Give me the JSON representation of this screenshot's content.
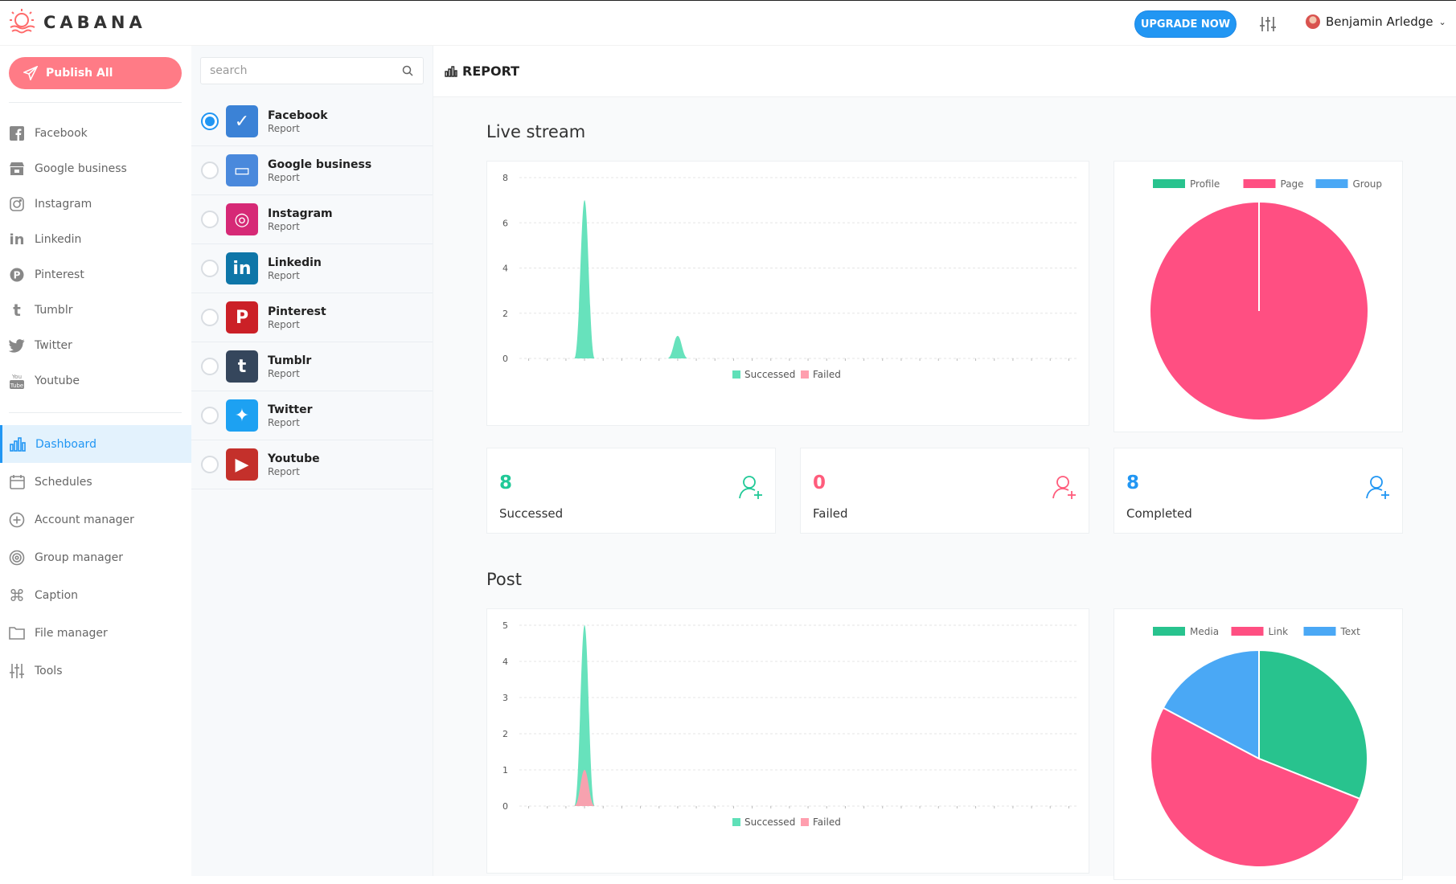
{
  "brand": {
    "name": "CABANA"
  },
  "header": {
    "upgrade_label": "UPGRADE NOW",
    "user_name": "Benjamin Arledge"
  },
  "sidebar": {
    "publish_label": "Publish All",
    "networks": [
      {
        "label": "Facebook",
        "icon": "facebook-icon"
      },
      {
        "label": "Google business",
        "icon": "store-icon"
      },
      {
        "label": "Instagram",
        "icon": "instagram-icon"
      },
      {
        "label": "Linkedin",
        "icon": "linkedin-icon"
      },
      {
        "label": "Pinterest",
        "icon": "pinterest-icon"
      },
      {
        "label": "Tumblr",
        "icon": "tumblr-icon"
      },
      {
        "label": "Twitter",
        "icon": "twitter-icon"
      },
      {
        "label": "Youtube",
        "icon": "youtube-icon"
      }
    ],
    "menu": [
      {
        "label": "Dashboard",
        "icon": "bar-chart-icon",
        "active": true
      },
      {
        "label": "Schedules",
        "icon": "calendar-icon"
      },
      {
        "label": "Account manager",
        "icon": "plus-circle-icon"
      },
      {
        "label": "Group manager",
        "icon": "target-icon"
      },
      {
        "label": "Caption",
        "icon": "command-icon"
      },
      {
        "label": "File manager",
        "icon": "folder-icon"
      },
      {
        "label": "Tools",
        "icon": "sliders-icon"
      }
    ]
  },
  "list": {
    "search_placeholder": "search",
    "items": [
      {
        "name": "Facebook",
        "sub": "Report",
        "color": "#3b82d6",
        "glyph": "✓",
        "selected": true
      },
      {
        "name": "Google business",
        "sub": "Report",
        "color": "#4a89dc",
        "glyph": "▭",
        "selected": false
      },
      {
        "name": "Instagram",
        "sub": "Report",
        "color": "#d62976",
        "glyph": "◎",
        "selected": false
      },
      {
        "name": "Linkedin",
        "sub": "Report",
        "color": "#0e76a8",
        "glyph": "in",
        "selected": false
      },
      {
        "name": "Pinterest",
        "sub": "Report",
        "color": "#cb2027",
        "glyph": "P",
        "selected": false
      },
      {
        "name": "Tumblr",
        "sub": "Report",
        "color": "#35465c",
        "glyph": "t",
        "selected": false
      },
      {
        "name": "Twitter",
        "sub": "Report",
        "color": "#1da1f2",
        "glyph": "✦",
        "selected": false
      },
      {
        "name": "Youtube",
        "sub": "Report",
        "color": "#c4302b",
        "glyph": "▶",
        "selected": false
      }
    ]
  },
  "main": {
    "title": "REPORT",
    "live_title": "Live stream",
    "post_title": "Post",
    "stats": [
      {
        "value": "8",
        "label": "Successed",
        "color": "#20c997"
      },
      {
        "value": "0",
        "label": "Failed",
        "color": "#ff5c7c"
      },
      {
        "value": "8",
        "label": "Completed",
        "color": "#2196f3"
      }
    ]
  },
  "chart_data": [
    {
      "type": "area",
      "y_ticks": [
        0,
        2,
        4,
        6,
        8
      ],
      "ylim": [
        0,
        8
      ],
      "points": 30,
      "series": [
        {
          "name": "Successed",
          "color": "#5fe0b8",
          "values": [
            0,
            0,
            0,
            7,
            0,
            0,
            0,
            0,
            1,
            0,
            0,
            0,
            0,
            0,
            0,
            0,
            0,
            0,
            0,
            0,
            0,
            0,
            0,
            0,
            0,
            0,
            0,
            0,
            0,
            0
          ]
        },
        {
          "name": "Failed",
          "color": "#ff9eae",
          "values": [
            0,
            0,
            0,
            0,
            0,
            0,
            0,
            0,
            0,
            0,
            0,
            0,
            0,
            0,
            0,
            0,
            0,
            0,
            0,
            0,
            0,
            0,
            0,
            0,
            0,
            0,
            0,
            0,
            0,
            0
          ]
        }
      ]
    },
    {
      "type": "pie",
      "legend": [
        "Profile",
        "Page",
        "Group"
      ],
      "colors": [
        "#28c38e",
        "#ff4f82",
        "#4aa8f5"
      ],
      "values": [
        0,
        8,
        0
      ]
    },
    {
      "type": "area",
      "y_ticks": [
        0,
        1,
        2,
        3,
        4,
        5
      ],
      "ylim": [
        0,
        5
      ],
      "points": 30,
      "series": [
        {
          "name": "Successed",
          "color": "#5fe0b8",
          "values": [
            0,
            0,
            0,
            5,
            0,
            0,
            0,
            0,
            0,
            0,
            0,
            0,
            0,
            0,
            0,
            0,
            0,
            0,
            0,
            0,
            0,
            0,
            0,
            0,
            0,
            0,
            0,
            0,
            0,
            0
          ]
        },
        {
          "name": "Failed",
          "color": "#ff9eae",
          "values": [
            0,
            0,
            0,
            1,
            0,
            0,
            0,
            0,
            0,
            0,
            0,
            0,
            0,
            0,
            0,
            0,
            0,
            0,
            0,
            0,
            0,
            0,
            0,
            0,
            0,
            0,
            0,
            0,
            0,
            0
          ]
        }
      ]
    },
    {
      "type": "pie",
      "legend": [
        "Media",
        "Link",
        "Text"
      ],
      "colors": [
        "#28c38e",
        "#ff4f82",
        "#4aa8f5"
      ],
      "values": [
        1.8,
        3,
        1
      ]
    }
  ]
}
